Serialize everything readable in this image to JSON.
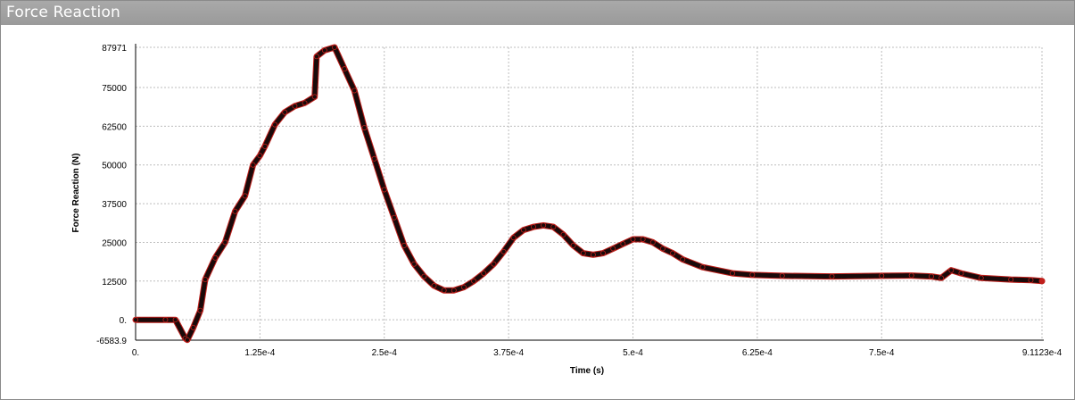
{
  "window": {
    "title": "Force Reaction"
  },
  "colors": {
    "line": "#1a0a0a",
    "marker": "#c0201c",
    "grid": "#bdbdbd",
    "titlebar": "#9e9e9e"
  },
  "chart_data": {
    "type": "line",
    "title": "",
    "xlabel": "Time (s)",
    "ylabel": "Force Reaction (N)",
    "xlim": [
      0,
      0.00091123
    ],
    "ylim": [
      -6583.9,
      87971
    ],
    "grid": true,
    "x_ticks": [
      0,
      0.000125,
      0.00025,
      0.000375,
      0.0005,
      0.000625,
      0.00075,
      0.00091123
    ],
    "x_tick_labels": [
      "0.",
      "1.25e-4",
      "2.5e-4",
      "3.75e-4",
      "5.e-4",
      "6.25e-4",
      "7.5e-4",
      "9.1123e-4"
    ],
    "y_ticks": [
      -6583.9,
      0,
      12500,
      25000,
      37500,
      50000,
      62500,
      75000,
      87971
    ],
    "y_tick_labels": [
      "-6583.9",
      "0.",
      "12500",
      "25000",
      "37500",
      "50000",
      "62500",
      "75000",
      "87971"
    ],
    "series": [
      {
        "x": [
          0,
          3e-05,
          4e-05,
          5e-05,
          5.2e-05,
          5.8e-05,
          6.5e-05,
          7e-05,
          8e-05,
          9e-05,
          0.0001,
          0.00011,
          0.000118,
          0.000125,
          0.00013,
          0.00014,
          0.00015,
          0.00016,
          0.00017,
          0.00018,
          0.000182,
          0.00019,
          0.0002,
          0.00021,
          0.00022,
          0.00023,
          0.00024,
          0.00025,
          0.00026,
          0.00027,
          0.00028,
          0.00029,
          0.0003,
          0.00031,
          0.00032,
          0.00033,
          0.00034,
          0.00035,
          0.00036,
          0.00037,
          0.00038,
          0.00039,
          0.0004,
          0.00041,
          0.00042,
          0.00043,
          0.00044,
          0.00045,
          0.00046,
          0.00047,
          0.00048,
          0.00049,
          0.0005,
          0.00051,
          0.00052,
          0.00053,
          0.00054,
          0.00055,
          0.00057,
          0.0006,
          0.00062,
          0.00065,
          0.0007,
          0.00075,
          0.00078,
          0.0008,
          0.00081,
          0.00082,
          0.00083,
          0.00085,
          0.00088,
          0.0009,
          0.00091123
        ],
        "y": [
          0,
          0,
          0,
          -6000,
          -6500,
          -2500,
          3000,
          13000,
          20000,
          25000,
          35000,
          40000,
          50000,
          53000,
          56000,
          63000,
          67000,
          69000,
          70000,
          72000,
          85000,
          87000,
          87971,
          81000,
          74000,
          62000,
          52000,
          42000,
          33000,
          24000,
          18000,
          14000,
          11000,
          9500,
          9500,
          10500,
          12500,
          15000,
          18000,
          22000,
          26500,
          29000,
          30000,
          30500,
          30000,
          27500,
          24000,
          21500,
          21000,
          21500,
          23000,
          24500,
          26000,
          26000,
          25000,
          23000,
          21500,
          19500,
          17000,
          15000,
          14500,
          14200,
          14000,
          14200,
          14300,
          14000,
          13500,
          16000,
          15000,
          13500,
          13000,
          12800,
          12500
        ]
      }
    ]
  }
}
